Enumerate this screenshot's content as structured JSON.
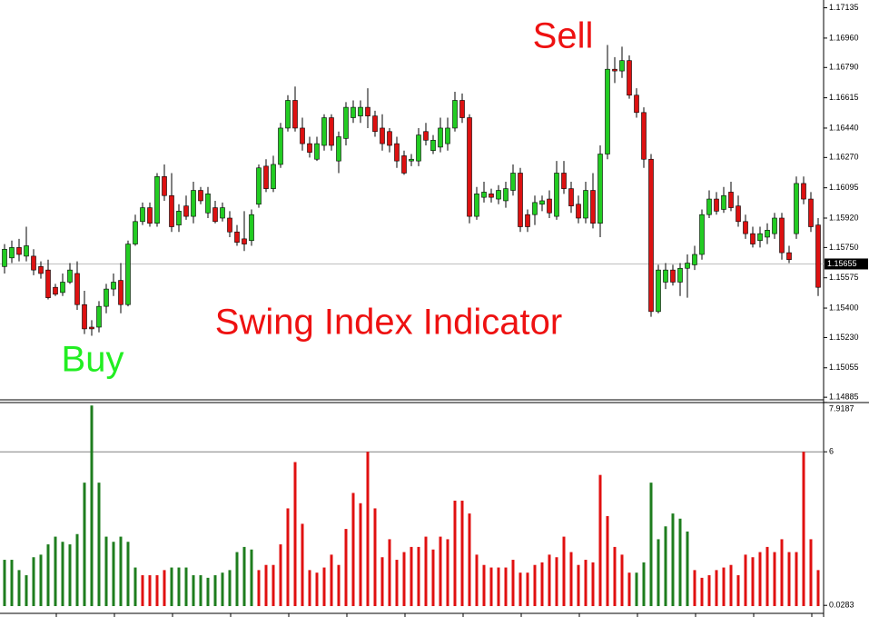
{
  "chart_data": [
    {
      "type": "candlestick",
      "up_color": "#22cc22",
      "down_color": "#dd1111",
      "wick_color": "#000000",
      "ylim": [
        1.1487,
        1.1718
      ],
      "yticks": [
        1.17135,
        {
          "value": 1.1696,
          "label": "1.16960"
        },
        {
          "value": 1.1679,
          "label": "1.16790"
        },
        1.16615,
        {
          "value": 1.1644,
          "label": "1.16440"
        },
        {
          "value": 1.1627,
          "label": "1.16270"
        },
        1.16095,
        {
          "value": 1.1592,
          "label": "1.15920"
        },
        {
          "value": 1.1575,
          "label": "1.15750"
        },
        1.15575,
        {
          "value": 1.154,
          "label": "1.15400"
        },
        {
          "value": 1.1523,
          "label": "1.15230"
        },
        1.15055,
        1.14885
      ],
      "current_price": 1.15655,
      "annotations": [
        {
          "text": "Sell",
          "color": "#ee1111"
        },
        {
          "text": "Buy",
          "color": "#22ee22"
        },
        {
          "text": "Swing Index Indicator",
          "color": "#ee1111"
        }
      ],
      "open": [
        1.1564,
        1.1569,
        1.1575,
        1.157,
        1.157,
        1.1564,
        1.1562,
        1.1552,
        1.1549,
        1.1555,
        1.156,
        1.1542,
        1.1529,
        1.1529,
        1.1541,
        1.1551,
        1.1556,
        1.1542,
        1.1577,
        1.159,
        1.1598,
        1.1589,
        1.1616,
        1.1605,
        1.1588,
        1.1599,
        1.1593,
        1.1608,
        1.1595,
        1.1598,
        1.1592,
        1.1592,
        1.1584,
        1.158,
        1.1579,
        1.16,
        1.1622,
        1.1609,
        1.1623,
        1.1644,
        1.166,
        1.1644,
        1.1635,
        1.1626,
        1.1634,
        1.165,
        1.1625,
        1.1638,
        1.165,
        1.1651,
        1.1656,
        1.1651,
        1.1644,
        1.1642,
        1.1635,
        1.1628,
        1.1625,
        1.1625,
        1.1642,
        1.1631,
        1.1633,
        1.1635,
        1.1644,
        1.166,
        1.165,
        1.1593,
        1.1604,
        1.1606,
        1.1603,
        1.1602,
        1.1608,
        1.1618,
        1.1594,
        1.1594,
        1.16,
        1.1603,
        1.1593,
        1.1618,
        1.1609,
        1.16,
        1.1592,
        1.1608,
        1.1589,
        1.1629,
        1.1678,
        1.1677,
        1.1683,
        1.1663,
        1.1653,
        1.1626,
        1.1538,
        1.1555,
        1.1562,
        1.1555,
        1.1563,
        1.1565,
        1.1571,
        1.1594,
        1.1603,
        1.1597,
        1.1607,
        1.1599,
        1.159,
        1.1583,
        1.1579,
        1.1581,
        1.1583,
        1.1592,
        1.1572,
        1.1583,
        1.1612,
        1.1603,
        1.1588
      ],
      "high": [
        1.1577,
        1.1579,
        1.158,
        1.1587,
        1.1574,
        1.1567,
        1.1568,
        1.1554,
        1.156,
        1.1566,
        1.1567,
        1.155,
        1.1533,
        1.1544,
        1.1554,
        1.156,
        1.1566,
        1.1579,
        1.1594,
        1.1601,
        1.1601,
        1.1618,
        1.1623,
        1.1618,
        1.16,
        1.1605,
        1.1613,
        1.161,
        1.161,
        1.1602,
        1.1601,
        1.1596,
        1.1588,
        1.1596,
        1.1597,
        1.1623,
        1.1626,
        1.1628,
        1.1647,
        1.1663,
        1.1668,
        1.165,
        1.1639,
        1.1639,
        1.1652,
        1.1652,
        1.1642,
        1.1659,
        1.166,
        1.166,
        1.1667,
        1.1654,
        1.1652,
        1.1644,
        1.1639,
        1.1631,
        1.1629,
        1.1644,
        1.1647,
        1.164,
        1.165,
        1.165,
        1.1665,
        1.1664,
        1.1652,
        1.161,
        1.1613,
        1.1609,
        1.1611,
        1.1613,
        1.1623,
        1.1621,
        1.1597,
        1.1605,
        1.1605,
        1.1608,
        1.1625,
        1.1625,
        1.1613,
        1.1605,
        1.1613,
        1.1618,
        1.1634,
        1.1692,
        1.1685,
        1.1691,
        1.1686,
        1.1667,
        1.1656,
        1.1629,
        1.1565,
        1.1566,
        1.1565,
        1.1566,
        1.1571,
        1.1576,
        1.1597,
        1.1608,
        1.1607,
        1.161,
        1.1613,
        1.1605,
        1.1594,
        1.1587,
        1.1587,
        1.1589,
        1.1595,
        1.1595,
        1.1576,
        1.1616,
        1.1616,
        1.1607,
        1.1592
      ],
      "low": [
        1.156,
        1.1566,
        1.1567,
        1.1567,
        1.1559,
        1.1557,
        1.1545,
        1.1547,
        1.1547,
        1.1554,
        1.1539,
        1.1525,
        1.1524,
        1.1526,
        1.1537,
        1.1547,
        1.1537,
        1.1541,
        1.1576,
        1.1588,
        1.1587,
        1.1587,
        1.1602,
        1.1584,
        1.1584,
        1.1591,
        1.1589,
        1.16,
        1.1592,
        1.1589,
        1.159,
        1.1581,
        1.1576,
        1.1573,
        1.1576,
        1.1598,
        1.1607,
        1.1607,
        1.1621,
        1.1642,
        1.1642,
        1.1631,
        1.1627,
        1.1625,
        1.1631,
        1.1631,
        1.1618,
        1.1634,
        1.1647,
        1.1647,
        1.1644,
        1.1639,
        1.1631,
        1.163,
        1.1621,
        1.1617,
        1.1622,
        1.1622,
        1.1634,
        1.1629,
        1.163,
        1.1631,
        1.1642,
        1.1647,
        1.1589,
        1.1591,
        1.1601,
        1.1601,
        1.16,
        1.1598,
        1.1605,
        1.1584,
        1.1584,
        1.1588,
        1.1596,
        1.1592,
        1.1591,
        1.1606,
        1.1595,
        1.1589,
        1.1589,
        1.1586,
        1.1581,
        1.1626,
        1.167,
        1.1673,
        1.1661,
        1.165,
        1.1621,
        1.1535,
        1.1537,
        1.1551,
        1.1553,
        1.1547,
        1.1546,
        1.1562,
        1.1568,
        1.1592,
        1.1594,
        1.1595,
        1.1596,
        1.1587,
        1.158,
        1.1575,
        1.1575,
        1.1577,
        1.158,
        1.1568,
        1.1566,
        1.158,
        1.16,
        1.1584,
        1.1547
      ],
      "close": [
        1.1574,
        1.1575,
        1.1571,
        1.1576,
        1.1562,
        1.156,
        1.1546,
        1.1548,
        1.1555,
        1.1562,
        1.1542,
        1.1528,
        1.1528,
        1.1541,
        1.1551,
        1.1555,
        1.1542,
        1.1577,
        1.159,
        1.1598,
        1.1589,
        1.1616,
        1.1605,
        1.1587,
        1.1596,
        1.1593,
        1.1608,
        1.1602,
        1.1606,
        1.159,
        1.1598,
        1.1584,
        1.1578,
        1.1577,
        1.1594,
        1.1621,
        1.1609,
        1.1623,
        1.1644,
        1.166,
        1.1644,
        1.1635,
        1.163,
        1.1635,
        1.165,
        1.1634,
        1.1639,
        1.1656,
        1.1656,
        1.1656,
        1.1651,
        1.1642,
        1.1635,
        1.1634,
        1.1625,
        1.1618,
        1.1626,
        1.164,
        1.1637,
        1.1637,
        1.1644,
        1.1644,
        1.166,
        1.165,
        1.1593,
        1.1606,
        1.1607,
        1.1604,
        1.1608,
        1.1609,
        1.1618,
        1.1587,
        1.1587,
        1.1601,
        1.1602,
        1.1595,
        1.1618,
        1.1609,
        1.1599,
        1.1592,
        1.1608,
        1.1589,
        1.1629,
        1.1678,
        1.1677,
        1.1683,
        1.1663,
        1.1653,
        1.1626,
        1.1538,
        1.1562,
        1.1562,
        1.1555,
        1.1563,
        1.1566,
        1.1571,
        1.1594,
        1.1603,
        1.1596,
        1.1605,
        1.1598,
        1.159,
        1.1583,
        1.1577,
        1.1583,
        1.1585,
        1.1592,
        1.1572,
        1.1568,
        1.1612,
        1.1603,
        1.1587,
        1.1552
      ]
    },
    {
      "type": "bar",
      "ylim": [
        0,
        7.95
      ],
      "yticks": [
        7.9187,
        6,
        0.0283
      ],
      "level": 6,
      "series": [
        {
          "color": "#1e7d1e",
          "values": [
            1.8,
            1.8,
            1.4,
            1.2,
            1.9,
            2.0,
            2.4,
            2.7,
            2.5,
            2.4,
            2.8,
            4.8,
            7.8,
            4.8,
            2.7,
            2.5,
            2.7,
            2.5,
            1.5,
            null,
            null,
            null,
            null,
            1.5,
            1.5,
            1.5,
            1.2,
            1.2,
            1.1,
            1.2,
            1.3,
            1.4,
            2.1,
            2.3,
            2.2,
            null,
            null,
            null,
            null,
            null,
            null,
            null,
            null,
            null,
            null,
            null,
            null,
            null,
            null,
            null,
            null,
            null,
            null,
            null,
            null,
            null,
            null,
            null,
            null,
            null,
            null,
            null,
            null,
            null,
            null,
            null,
            null,
            null,
            null,
            null,
            null,
            null,
            null,
            null,
            null,
            null,
            null,
            null,
            null,
            null,
            null,
            null,
            null,
            null,
            null,
            null,
            null,
            1.3,
            1.7,
            4.8,
            2.6,
            3.1,
            3.6,
            3.4,
            2.9,
            null,
            null,
            null,
            null,
            null,
            null,
            null,
            null,
            null,
            null,
            null,
            null,
            null,
            null,
            null,
            null,
            null,
            null
          ]
        },
        {
          "color": "#e01010",
          "values": [
            null,
            null,
            null,
            null,
            null,
            null,
            null,
            null,
            null,
            null,
            null,
            null,
            null,
            null,
            null,
            null,
            null,
            null,
            null,
            1.2,
            1.2,
            1.2,
            1.4,
            null,
            null,
            null,
            null,
            null,
            null,
            null,
            null,
            null,
            null,
            null,
            null,
            1.4,
            1.6,
            1.6,
            2.4,
            3.8,
            5.6,
            3.2,
            1.4,
            1.3,
            1.5,
            2.0,
            1.6,
            3.0,
            4.4,
            4.0,
            6,
            3.8,
            1.9,
            2.6,
            1.8,
            2.1,
            2.3,
            2.3,
            2.7,
            2.2,
            2.7,
            2.6,
            4.1,
            4.1,
            3.6,
            2.0,
            1.6,
            1.5,
            1.5,
            1.5,
            1.8,
            1.3,
            1.3,
            1.6,
            1.7,
            2.0,
            1.9,
            2.7,
            2.1,
            1.6,
            1.8,
            1.7,
            5.1,
            3.5,
            2.3,
            2.0,
            1.3,
            null,
            null,
            null,
            null,
            null,
            null,
            null,
            null,
            1.4,
            1.1,
            1.2,
            1.4,
            1.5,
            1.6,
            1.2,
            2.0,
            1.9,
            2.1,
            2.3,
            2.1,
            2.6,
            2.1,
            2.1,
            6,
            2.6,
            1.4
          ]
        }
      ]
    }
  ]
}
